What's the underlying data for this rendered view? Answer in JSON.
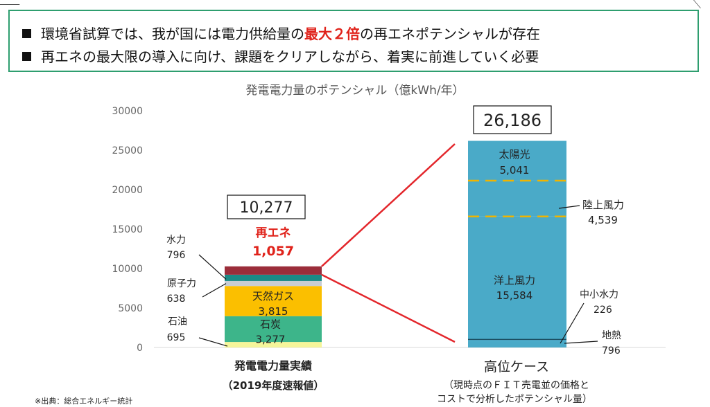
{
  "summary": {
    "line1_pre": "環境省試算では、我が国には電力供給量の",
    "line1_highlight": "最大２倍",
    "line1_post": "の再エネポテンシャルが存在",
    "line2": "再エネの最大限の導入に向け、課題をクリアしながら、着実に前進していく必要"
  },
  "colors": {
    "box_border": "#2e9e6f",
    "highlight": "#e0231b",
    "renewable": "#9b2d3a",
    "hydro": "#1b8a86",
    "nuclear": "#c8cdd2",
    "lng": "#fbbf00",
    "coal": "#3db58a",
    "oil": "#f5f59a",
    "potential": "#4aaac8",
    "dash": "#f0b400",
    "connector": "#e3262b"
  },
  "chart_data": {
    "type": "bar",
    "title": "発電電力量のポテンシャル（億kWh/年）",
    "ylim": [
      0,
      30000
    ],
    "yticks": [
      "0",
      "5000",
      "10000",
      "15000",
      "20000",
      "25000",
      "30000"
    ],
    "categories": [
      "発電電力量実績",
      "高位ケース"
    ],
    "category_sublabels": [
      "（2019年度速報値）",
      "（現時点のＦＩＴ売電並の価格と\nコストで分析したポテンシャル量）"
    ],
    "totals": [
      "10,277",
      "26,186"
    ],
    "actual_segments": [
      {
        "key": "oil",
        "value": 695
      },
      {
        "key": "coal",
        "value": 3277
      },
      {
        "key": "lng",
        "value": 3815
      },
      {
        "key": "nuclear",
        "value": 638
      },
      {
        "key": "hydro",
        "value": 796
      },
      {
        "key": "renewable",
        "value": 1057
      }
    ],
    "actual_labels": {
      "renewable_name": "再エネ",
      "renewable_value": "1,057",
      "hydro_name": "水力",
      "hydro_value": "796",
      "nuclear_name": "原子力",
      "nuclear_value": "638",
      "lng_name": "天然ガス",
      "lng_value": "3,815",
      "coal_name": "石炭",
      "coal_value": "3,277",
      "oil_name": "石油",
      "oil_value": "695"
    },
    "potential_segments": [
      {
        "key": "geothermal",
        "value": 796
      },
      {
        "key": "small_hydro",
        "value": 226
      },
      {
        "key": "offshore_wind",
        "value": 15584
      },
      {
        "key": "onshore_wind",
        "value": 4539
      },
      {
        "key": "solar",
        "value": 5041
      }
    ],
    "potential_labels": {
      "solar_name": "太陽光",
      "solar_value": "5,041",
      "onshore_wind_name": "陸上風力",
      "onshore_wind_value": "4,539",
      "offshore_wind_name": "洋上風力",
      "offshore_wind_value": "15,584",
      "small_hydro_name": "中小水力",
      "small_hydro_value": "226",
      "geothermal_name": "地熱",
      "geothermal_value": "796"
    }
  },
  "source": "※出典：総合エネルギー統計"
}
